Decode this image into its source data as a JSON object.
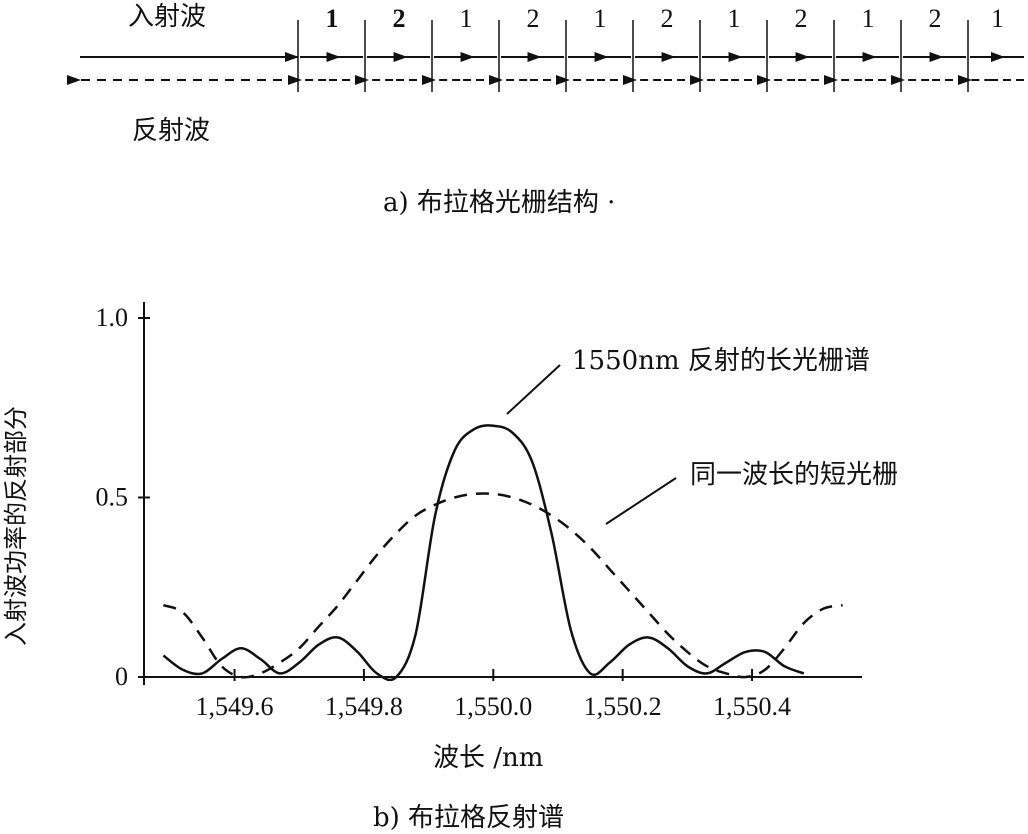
{
  "part_a": {
    "incident_label": "入射波",
    "reflected_label": "反射波",
    "caption": "a) 布拉格光栅结构 ·",
    "segment_labels": [
      "1",
      "2",
      "1",
      "2",
      "1",
      "2",
      "1",
      "2",
      "1",
      "2",
      "1"
    ]
  },
  "part_b": {
    "caption": "b) 布拉格反射谱",
    "annotation_solid": "1550nm 反射的长光栅谱",
    "annotation_dashed": "同一波长的短光栅"
  },
  "chart_data": {
    "type": "line",
    "xlabel": "波长 /nm",
    "ylabel": "入射波功率的反射部分",
    "x_ticks": [
      "1,549.6",
      "1,549.8",
      "1,550.0",
      "1,550.2",
      "1,550.4"
    ],
    "y_ticks": [
      "0",
      "0.5",
      "1.0"
    ],
    "xlim": [
      1549.46,
      1550.57
    ],
    "ylim": [
      0,
      1.0
    ],
    "series": [
      {
        "name": "1550nm 反射的长光栅谱",
        "style": "solid",
        "x": [
          1549.49,
          1549.52,
          1549.55,
          1549.58,
          1549.61,
          1549.64,
          1549.67,
          1549.7,
          1549.73,
          1549.76,
          1549.79,
          1549.82,
          1549.85,
          1549.88,
          1549.91,
          1549.94,
          1549.97,
          1550.0,
          1550.03,
          1550.06,
          1550.09,
          1550.12,
          1550.15,
          1550.18,
          1550.21,
          1550.24,
          1550.27,
          1550.3,
          1550.33,
          1550.36,
          1550.39,
          1550.42,
          1550.45,
          1550.48
        ],
        "y": [
          0.06,
          0.02,
          0.01,
          0.05,
          0.08,
          0.05,
          0.01,
          0.04,
          0.09,
          0.11,
          0.07,
          0.01,
          0.0,
          0.12,
          0.45,
          0.63,
          0.69,
          0.7,
          0.68,
          0.6,
          0.4,
          0.13,
          0.01,
          0.04,
          0.09,
          0.11,
          0.08,
          0.03,
          0.01,
          0.04,
          0.07,
          0.07,
          0.03,
          0.01
        ]
      },
      {
        "name": "同一波长的短光栅",
        "style": "dashed",
        "x": [
          1549.49,
          1549.52,
          1549.55,
          1549.58,
          1549.61,
          1549.64,
          1549.67,
          1549.7,
          1549.73,
          1549.76,
          1549.79,
          1549.82,
          1549.85,
          1549.88,
          1549.91,
          1549.94,
          1549.97,
          1550.0,
          1550.03,
          1550.06,
          1550.09,
          1550.12,
          1550.15,
          1550.18,
          1550.21,
          1550.24,
          1550.27,
          1550.3,
          1550.33,
          1550.36,
          1550.39,
          1550.42,
          1550.45,
          1550.48,
          1550.51,
          1550.54
        ],
        "y": [
          0.2,
          0.18,
          0.11,
          0.03,
          0.0,
          0.01,
          0.04,
          0.08,
          0.14,
          0.2,
          0.27,
          0.34,
          0.4,
          0.45,
          0.48,
          0.5,
          0.51,
          0.51,
          0.5,
          0.48,
          0.45,
          0.41,
          0.36,
          0.3,
          0.24,
          0.18,
          0.12,
          0.07,
          0.03,
          0.01,
          0.0,
          0.02,
          0.08,
          0.15,
          0.19,
          0.2
        ]
      }
    ]
  }
}
